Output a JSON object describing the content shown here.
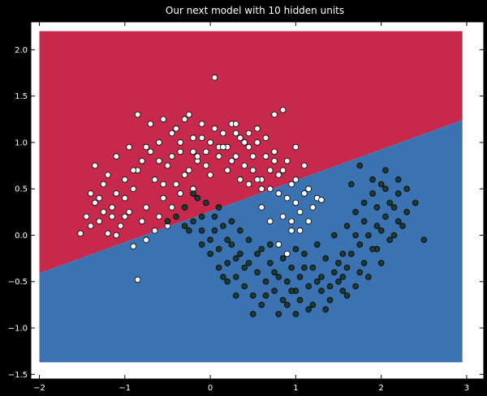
{
  "chart_data": {
    "type": "scatter",
    "title": "Our next model with 10 hidden units",
    "xlabel": "",
    "ylabel": "",
    "xlim": [
      -2.1,
      3.2
    ],
    "ylim": [
      -1.55,
      2.3
    ],
    "x_ticks": [
      -2,
      -1,
      0,
      1,
      2,
      3
    ],
    "y_ticks": [
      -1.5,
      -1.0,
      -0.5,
      0.0,
      0.5,
      1.0,
      1.5,
      2.0
    ],
    "x_tick_labels": [
      "−2",
      "−1",
      "0",
      "1",
      "2",
      "3"
    ],
    "y_tick_labels": [
      "−1.5",
      "−1.0",
      "−0.5",
      "0.0",
      "0.5",
      "1.0",
      "1.5",
      "2.0"
    ],
    "grid": false,
    "legend": "none",
    "decision_region": {
      "x_range": [
        -2.0,
        2.95
      ],
      "y_range": [
        -1.37,
        2.2
      ],
      "boundary_line": [
        [
          -2.0,
          -0.41
        ],
        [
          2.95,
          1.24
        ]
      ],
      "upper_color": "#c6294b",
      "lower_color": "#3b73b2"
    },
    "colors": {
      "background": "#000000",
      "axes_face": "#ffffff",
      "class_0": "#ffffff",
      "class_1": "#1c3a32"
    },
    "series": [
      {
        "class": 0,
        "points": [
          [
            -1.52,
            0.02
          ],
          [
            -1.45,
            0.2
          ],
          [
            -1.4,
            0.1
          ],
          [
            -1.35,
            0.35
          ],
          [
            -1.3,
            0.15
          ],
          [
            -1.25,
            0.25
          ],
          [
            -1.2,
            0.02
          ],
          [
            -1.15,
            0.3
          ],
          [
            -1.1,
            0.45
          ],
          [
            -1.05,
            0.1
          ],
          [
            -1.0,
            0.6
          ],
          [
            -0.95,
            0.25
          ],
          [
            -0.9,
            0.5
          ],
          [
            -0.85,
            0.7
          ],
          [
            -0.8,
            0.8
          ],
          [
            -0.75,
            0.3
          ],
          [
            -0.7,
            0.9
          ],
          [
            -0.65,
            0.6
          ],
          [
            -0.6,
            1.0
          ],
          [
            -0.55,
            0.4
          ],
          [
            -0.5,
            0.75
          ],
          [
            -0.45,
            1.1
          ],
          [
            -0.4,
            0.55
          ],
          [
            -0.35,
            0.9
          ],
          [
            -0.3,
            1.25
          ],
          [
            -0.25,
            0.7
          ],
          [
            -0.2,
            1.05
          ],
          [
            -0.15,
            0.8
          ],
          [
            -0.1,
            1.2
          ],
          [
            -0.05,
            0.9
          ],
          [
            0.0,
            1.0
          ],
          [
            0.05,
            1.15
          ],
          [
            0.1,
            0.85
          ],
          [
            0.15,
            1.1
          ],
          [
            0.2,
            0.95
          ],
          [
            0.25,
            1.2
          ],
          [
            0.3,
            0.85
          ],
          [
            0.35,
            1.05
          ],
          [
            0.4,
            0.75
          ],
          [
            0.45,
            0.95
          ],
          [
            0.5,
            0.7
          ],
          [
            0.55,
            1.0
          ],
          [
            0.6,
            0.6
          ],
          [
            0.65,
            0.85
          ],
          [
            0.7,
            0.5
          ],
          [
            0.75,
            0.8
          ],
          [
            0.8,
            0.45
          ],
          [
            0.85,
            0.7
          ],
          [
            0.9,
            0.4
          ],
          [
            0.95,
            0.55
          ],
          [
            1.0,
            0.35
          ],
          [
            1.05,
            0.25
          ],
          [
            1.1,
            0.45
          ],
          [
            1.15,
            0.15
          ],
          [
            1.2,
            0.3
          ],
          [
            -1.35,
            0.75
          ],
          [
            -1.2,
            0.65
          ],
          [
            -1.1,
            0.85
          ],
          [
            -0.95,
            0.95
          ],
          [
            -0.85,
            1.3
          ],
          [
            -0.7,
            1.2
          ],
          [
            -0.55,
            1.25
          ],
          [
            -0.4,
            1.15
          ],
          [
            -0.25,
            1.3
          ],
          [
            -0.1,
            1.05
          ],
          [
            0.05,
            1.7
          ],
          [
            0.3,
            1.2
          ],
          [
            0.55,
            1.15
          ],
          [
            0.75,
            1.3
          ],
          [
            0.85,
            1.35
          ],
          [
            1.1,
            0.75
          ],
          [
            0.6,
            0.3
          ],
          [
            0.7,
            0.15
          ],
          [
            0.85,
            0.2
          ],
          [
            0.95,
            0.05
          ],
          [
            0.8,
            -0.1
          ],
          [
            0.9,
            -0.2
          ],
          [
            1.05,
            0.05
          ],
          [
            -0.85,
            -0.48
          ],
          [
            -0.9,
            -0.12
          ],
          [
            -1.1,
            0.0
          ],
          [
            -1.3,
            0.4
          ],
          [
            -1.0,
            0.4
          ],
          [
            -0.8,
            0.15
          ],
          [
            -0.6,
            0.2
          ],
          [
            -0.5,
            0.1
          ],
          [
            -0.45,
            0.3
          ],
          [
            -0.35,
            0.45
          ],
          [
            -0.2,
            0.5
          ],
          [
            0.0,
            0.65
          ],
          [
            0.2,
            0.7
          ],
          [
            0.35,
            0.6
          ],
          [
            0.45,
            0.55
          ],
          [
            0.6,
            0.5
          ],
          [
            0.8,
            0.65
          ],
          [
            1.0,
            0.6
          ],
          [
            1.15,
            0.5
          ],
          [
            1.25,
            0.4
          ],
          [
            1.3,
            0.38
          ],
          [
            -0.65,
            0.05
          ],
          [
            -0.75,
            -0.05
          ],
          [
            -0.55,
            0.55
          ],
          [
            -0.3,
            0.65
          ],
          [
            -0.15,
            0.85
          ],
          [
            0.1,
            0.95
          ],
          [
            0.25,
            0.8
          ],
          [
            0.4,
            1.0
          ],
          [
            0.5,
            0.85
          ],
          [
            0.65,
            1.05
          ],
          [
            0.75,
            0.9
          ],
          [
            -1.4,
            0.45
          ],
          [
            -1.25,
            0.55
          ],
          [
            -1.15,
            0.2
          ],
          [
            -1.0,
            0.2
          ],
          [
            -0.9,
            0.7
          ],
          [
            -0.75,
            0.95
          ],
          [
            -0.6,
            0.8
          ],
          [
            -0.45,
            0.85
          ],
          [
            -0.35,
            1.0
          ],
          [
            -0.2,
            0.9
          ],
          [
            -0.05,
            0.75
          ],
          [
            0.15,
            0.95
          ],
          [
            0.3,
            1.1
          ],
          [
            0.45,
            1.1
          ],
          [
            0.55,
            0.6
          ],
          [
            0.7,
            0.7
          ],
          [
            0.9,
            0.8
          ],
          [
            1.0,
            0.95
          ],
          [
            0.95,
            0.15
          ]
        ]
      },
      {
        "class": 1,
        "points": [
          [
            -0.3,
            0.3
          ],
          [
            -0.2,
            0.15
          ],
          [
            -0.1,
            0.05
          ],
          [
            0.0,
            -0.05
          ],
          [
            0.05,
            0.2
          ],
          [
            0.1,
            -0.15
          ],
          [
            0.15,
            0.1
          ],
          [
            0.2,
            -0.3
          ],
          [
            0.25,
            -0.1
          ],
          [
            0.3,
            -0.45
          ],
          [
            0.35,
            -0.2
          ],
          [
            0.4,
            -0.55
          ],
          [
            0.45,
            -0.3
          ],
          [
            0.5,
            -0.65
          ],
          [
            0.55,
            -0.4
          ],
          [
            0.6,
            -0.75
          ],
          [
            0.65,
            -0.5
          ],
          [
            0.7,
            -0.3
          ],
          [
            0.75,
            -0.6
          ],
          [
            0.8,
            -0.45
          ],
          [
            0.85,
            -0.7
          ],
          [
            0.9,
            -0.5
          ],
          [
            0.95,
            -0.35
          ],
          [
            1.0,
            -0.6
          ],
          [
            1.05,
            -0.45
          ],
          [
            1.1,
            -0.2
          ],
          [
            1.15,
            -0.55
          ],
          [
            1.2,
            -0.35
          ],
          [
            1.25,
            -0.1
          ],
          [
            1.3,
            -0.45
          ],
          [
            1.35,
            -0.25
          ],
          [
            1.4,
            -0.55
          ],
          [
            1.45,
            0.0
          ],
          [
            1.5,
            -0.3
          ],
          [
            1.55,
            -0.45
          ],
          [
            1.6,
            0.1
          ],
          [
            1.65,
            -0.2
          ],
          [
            1.7,
            0.25
          ],
          [
            1.75,
            -0.1
          ],
          [
            1.8,
            0.35
          ],
          [
            1.85,
            0.0
          ],
          [
            1.9,
            0.45
          ],
          [
            1.95,
            0.1
          ],
          [
            2.0,
            0.55
          ],
          [
            2.05,
            0.2
          ],
          [
            2.1,
            0.35
          ],
          [
            2.15,
            0.0
          ],
          [
            2.2,
            0.45
          ],
          [
            2.25,
            0.1
          ],
          [
            2.3,
            0.25
          ],
          [
            2.4,
            0.35
          ],
          [
            2.5,
            -0.05
          ],
          [
            1.75,
            0.75
          ],
          [
            1.9,
            0.6
          ],
          [
            2.05,
            0.5
          ],
          [
            2.2,
            0.6
          ],
          [
            1.65,
            0.55
          ],
          [
            1.8,
            0.15
          ],
          [
            1.95,
            -0.15
          ],
          [
            2.1,
            -0.05
          ],
          [
            1.55,
            -0.6
          ],
          [
            1.4,
            -0.7
          ],
          [
            1.2,
            -0.75
          ],
          [
            1.0,
            -0.85
          ],
          [
            0.8,
            -0.85
          ],
          [
            0.5,
            -0.85
          ],
          [
            0.3,
            -0.65
          ],
          [
            0.2,
            -0.5
          ],
          [
            0.1,
            -0.35
          ],
          [
            0.0,
            -0.2
          ],
          [
            -0.1,
            -0.1
          ],
          [
            -0.25,
            0.05
          ],
          [
            -0.3,
            0.1
          ],
          [
            -0.15,
            0.4
          ],
          [
            -0.05,
            0.35
          ],
          [
            -0.2,
            0.45
          ],
          [
            0.1,
            0.3
          ],
          [
            0.25,
            0.15
          ],
          [
            0.35,
            0.05
          ],
          [
            0.45,
            -0.05
          ],
          [
            0.6,
            -0.15
          ],
          [
            0.7,
            -0.1
          ],
          [
            0.85,
            -0.25
          ],
          [
            1.0,
            -0.15
          ],
          [
            1.1,
            -0.35
          ],
          [
            1.3,
            -0.6
          ],
          [
            1.5,
            -0.5
          ],
          [
            1.6,
            -0.35
          ],
          [
            1.7,
            -0.55
          ],
          [
            1.85,
            -0.45
          ],
          [
            2.0,
            -0.3
          ],
          [
            -0.4,
            0.2
          ],
          [
            -0.5,
            0.15
          ],
          [
            0.65,
            -0.65
          ],
          [
            0.9,
            -0.75
          ],
          [
            1.15,
            -0.8
          ],
          [
            1.35,
            -0.8
          ],
          [
            1.55,
            -0.2
          ],
          [
            1.7,
            0.0
          ],
          [
            1.8,
            -0.3
          ],
          [
            1.95,
            0.3
          ],
          [
            2.05,
            0.7
          ],
          [
            2.15,
            0.3
          ],
          [
            2.3,
            0.5
          ],
          [
            0.15,
            -0.45
          ],
          [
            0.4,
            -0.35
          ],
          [
            0.55,
            -0.2
          ],
          [
            0.75,
            -0.4
          ],
          [
            0.95,
            -0.6
          ],
          [
            1.05,
            -0.7
          ],
          [
            1.25,
            -0.5
          ],
          [
            1.45,
            -0.4
          ],
          [
            1.6,
            -0.65
          ],
          [
            1.75,
            -0.4
          ],
          [
            1.9,
            -0.15
          ],
          [
            2.0,
            0.05
          ],
          [
            2.2,
            0.15
          ],
          [
            -0.1,
            0.2
          ],
          [
            0.05,
            0.05
          ],
          [
            0.2,
            -0.05
          ],
          [
            0.3,
            -0.25
          ]
        ]
      }
    ]
  }
}
